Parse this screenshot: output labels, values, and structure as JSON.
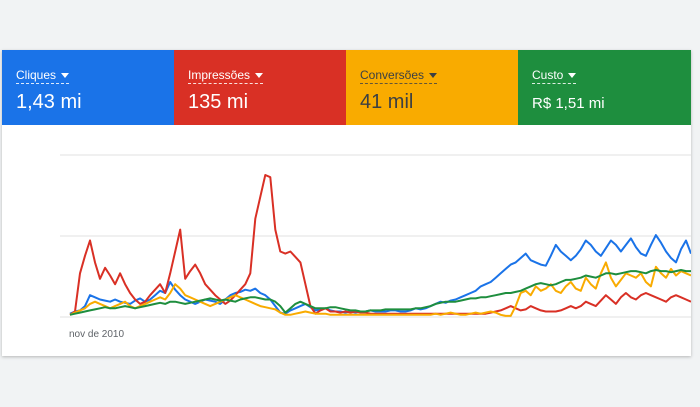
{
  "tiles": [
    {
      "label": "Cliques",
      "value": "1,43 mi",
      "color": "#1a73e8"
    },
    {
      "label": "Impressões",
      "value": "135 mi",
      "color": "#d93025"
    },
    {
      "label": "Conversões",
      "value": "41 mil",
      "color": "#f9ab00"
    },
    {
      "label": "Custo",
      "value": "R$ 1,51 mi",
      "color": "#1e8e3e"
    }
  ],
  "chart": {
    "x_tick_label": "nov de 2010"
  },
  "chart_data": {
    "type": "line",
    "x_label": "nov de 2010",
    "grid": true,
    "series": [
      {
        "name": "Cliques",
        "color": "#1a73e8",
        "values": [
          3,
          5,
          6,
          10,
          20,
          18,
          16,
          15,
          14,
          16,
          14,
          13,
          12,
          15,
          17,
          14,
          16,
          20,
          24,
          22,
          32,
          25,
          20,
          16,
          14,
          12,
          14,
          16,
          15,
          14,
          12,
          16,
          20,
          22,
          23,
          25,
          24,
          26,
          22,
          20,
          16,
          10,
          4,
          3,
          6,
          8,
          10,
          12,
          9,
          6,
          7,
          8,
          6,
          5,
          5,
          4,
          5,
          4,
          5,
          5,
          6,
          5,
          5,
          5,
          6,
          6,
          5,
          5,
          6,
          8,
          7,
          8,
          10,
          12,
          14,
          13,
          15,
          16,
          18,
          20,
          22,
          24,
          28,
          30,
          32,
          36,
          40,
          44,
          48,
          50,
          54,
          58,
          52,
          50,
          48,
          47,
          56,
          66,
          60,
          56,
          52,
          56,
          62,
          70,
          66,
          60,
          56,
          63,
          70,
          66,
          60,
          66,
          72,
          64,
          58,
          56,
          66,
          75,
          68,
          60,
          54,
          50,
          62,
          70,
          58
        ]
      },
      {
        "name": "Impressões",
        "color": "#d93025",
        "values": [
          2,
          5,
          40,
          56,
          70,
          50,
          35,
          45,
          38,
          30,
          40,
          30,
          22,
          16,
          12,
          14,
          20,
          25,
          30,
          22,
          40,
          60,
          80,
          35,
          42,
          48,
          40,
          30,
          25,
          20,
          16,
          12,
          15,
          20,
          25,
          30,
          40,
          90,
          110,
          130,
          128,
          80,
          60,
          58,
          60,
          55,
          50,
          30,
          10,
          3,
          6,
          8,
          5,
          5,
          4,
          5,
          4,
          5,
          4,
          4,
          3,
          3,
          3,
          3,
          3,
          3,
          3,
          3,
          3,
          3,
          3,
          3,
          3,
          3,
          3,
          3,
          3,
          3,
          3,
          3,
          3,
          3,
          3,
          3,
          4,
          5,
          6,
          8,
          10,
          8,
          6,
          7,
          10,
          8,
          6,
          5,
          5,
          5,
          6,
          8,
          10,
          8,
          10,
          14,
          12,
          10,
          15,
          20,
          16,
          12,
          18,
          22,
          18,
          16,
          20,
          22,
          20,
          18,
          16,
          14,
          18,
          20,
          18,
          16,
          14
        ]
      },
      {
        "name": "Conversões",
        "color": "#f9ab00",
        "values": [
          2,
          4,
          6,
          8,
          12,
          14,
          12,
          10,
          8,
          10,
          12,
          14,
          10,
          8,
          10,
          12,
          14,
          16,
          18,
          16,
          22,
          30,
          26,
          20,
          18,
          16,
          14,
          12,
          10,
          12,
          14,
          16,
          18,
          20,
          18,
          16,
          14,
          12,
          10,
          9,
          8,
          7,
          4,
          2,
          2,
          3,
          4,
          5,
          4,
          3,
          3,
          3,
          2,
          2,
          2,
          2,
          2,
          2,
          2,
          2,
          2,
          2,
          2,
          2,
          2,
          2,
          2,
          2,
          2,
          2,
          2,
          2,
          2,
          3,
          2,
          3,
          4,
          3,
          2,
          2,
          3,
          4,
          3,
          4,
          5,
          4,
          2,
          1,
          1,
          10,
          22,
          24,
          20,
          28,
          24,
          26,
          30,
          24,
          22,
          28,
          32,
          26,
          24,
          36,
          30,
          26,
          40,
          50,
          36,
          28,
          34,
          40,
          38,
          36,
          40,
          32,
          28,
          46,
          40,
          36,
          44,
          38,
          42,
          40,
          38
        ]
      },
      {
        "name": "Custo",
        "color": "#1e8e3e",
        "values": [
          2,
          3,
          4,
          5,
          6,
          7,
          8,
          9,
          8,
          8,
          9,
          10,
          9,
          8,
          9,
          10,
          11,
          12,
          13,
          12,
          14,
          14,
          13,
          12,
          13,
          14,
          15,
          16,
          17,
          16,
          15,
          16,
          15,
          14,
          16,
          17,
          18,
          18,
          17,
          16,
          16,
          14,
          10,
          4,
          8,
          12,
          14,
          12,
          10,
          8,
          8,
          8,
          9,
          9,
          8,
          7,
          6,
          6,
          5,
          5,
          6,
          6,
          6,
          7,
          7,
          7,
          7,
          7,
          7,
          8,
          8,
          9,
          10,
          12,
          13,
          14,
          14,
          14,
          15,
          16,
          17,
          17,
          18,
          18,
          19,
          20,
          21,
          22,
          22,
          23,
          24,
          26,
          28,
          30,
          31,
          30,
          29,
          30,
          32,
          34,
          34,
          35,
          36,
          38,
          37,
          36,
          38,
          40,
          40,
          39,
          40,
          41,
          42,
          42,
          41,
          40,
          42,
          43,
          42,
          42,
          41,
          42,
          43,
          42,
          42
        ]
      }
    ]
  }
}
